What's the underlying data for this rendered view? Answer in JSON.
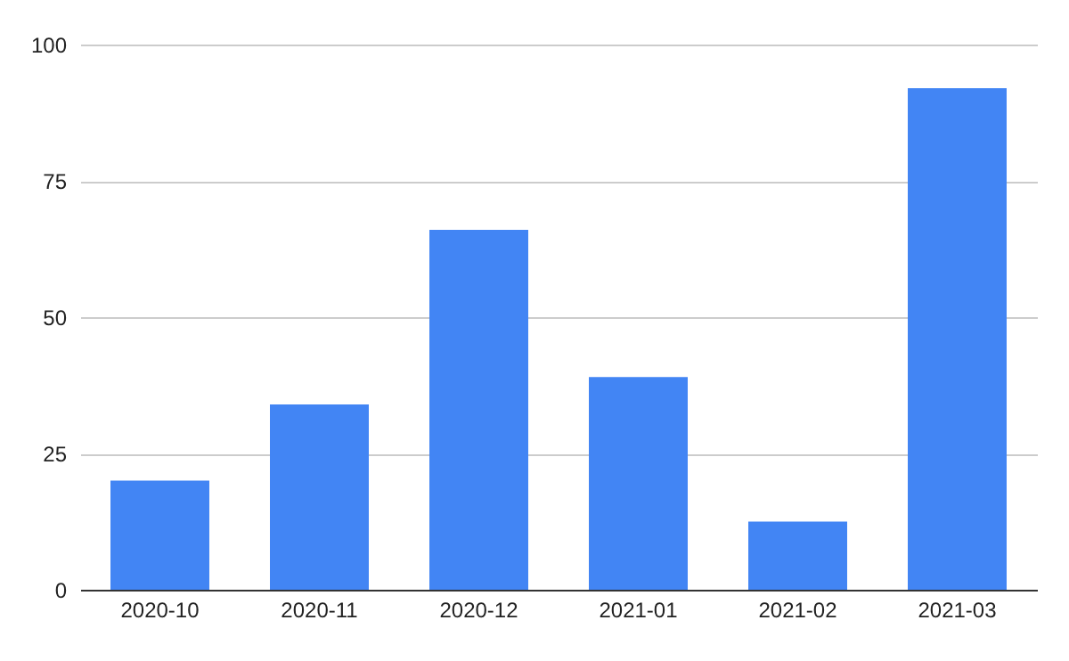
{
  "chart_data": {
    "type": "bar",
    "categories": [
      "2020-10",
      "2020-11",
      "2020-12",
      "2021-01",
      "2021-02",
      "2021-03"
    ],
    "values": [
      20,
      34,
      66,
      39,
      12.5,
      92
    ],
    "color": "#4285f4",
    "ylim": [
      0,
      100
    ],
    "yticks": [
      0,
      25,
      50,
      75,
      100
    ],
    "grid": "y"
  }
}
